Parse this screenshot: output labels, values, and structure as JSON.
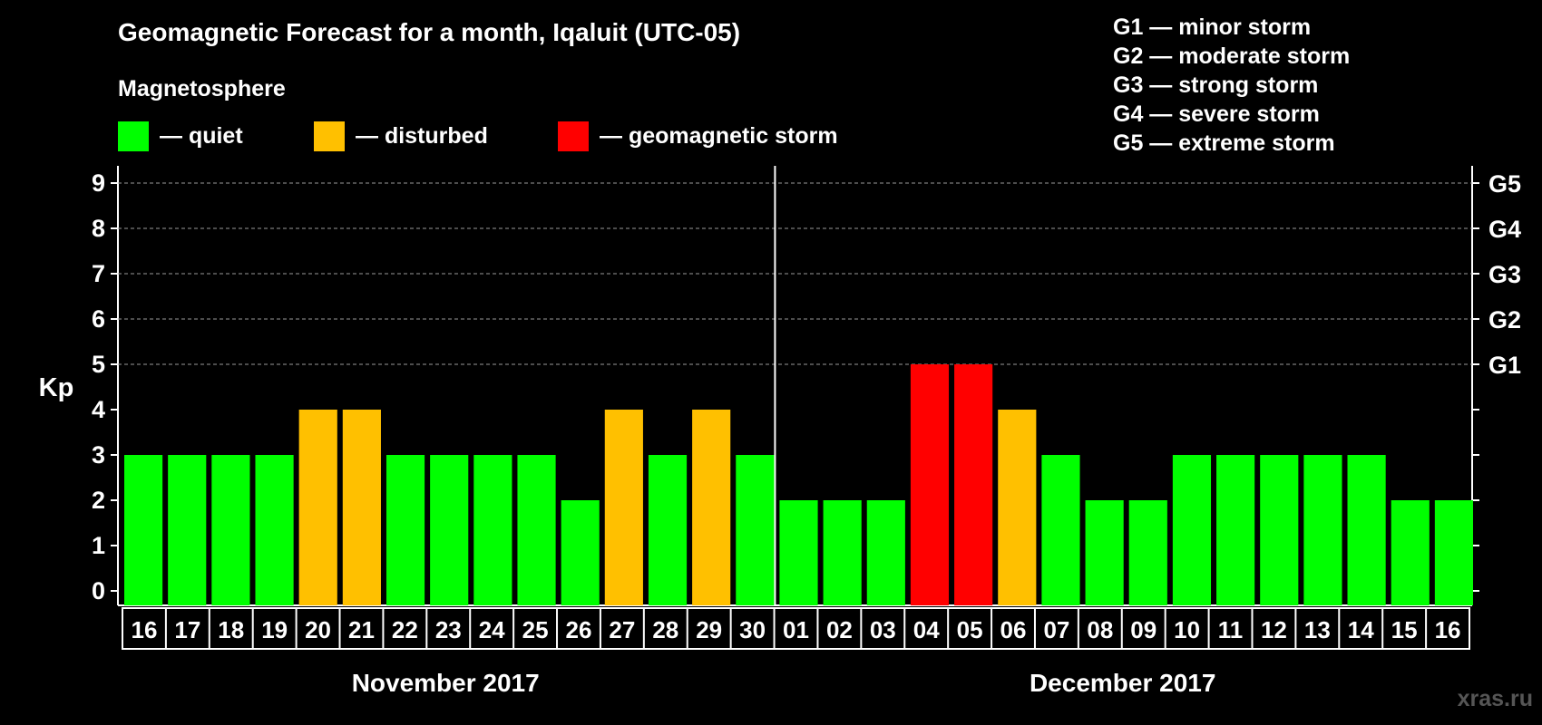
{
  "title": "Geomagnetic Forecast for a month, Iqaluit (UTC-05)",
  "subtitle": "Magnetosphere",
  "legend": [
    {
      "label": "— quiet",
      "color": "#00ff00"
    },
    {
      "label": "— disturbed",
      "color": "#ffc000"
    },
    {
      "label": "— geomagnetic storm",
      "color": "#ff0000"
    }
  ],
  "storm_scale": [
    "G1 — minor storm",
    "G2 — moderate storm",
    "G3 — strong storm",
    "G4 — severe storm",
    "G5 — extreme storm"
  ],
  "watermark": "xras.ru",
  "chart_data": {
    "type": "bar",
    "title": "Geomagnetic Forecast for a month, Iqaluit (UTC-05)",
    "ylabel": "Kp",
    "ylim": [
      0,
      9
    ],
    "yticks": [
      "0",
      "1",
      "2",
      "3",
      "4",
      "5",
      "6",
      "7",
      "8",
      "9"
    ],
    "right_axis": [
      {
        "kp": 5,
        "label": "G1"
      },
      {
        "kp": 6,
        "label": "G2"
      },
      {
        "kp": 7,
        "label": "G3"
      },
      {
        "kp": 8,
        "label": "G4"
      },
      {
        "kp": 9,
        "label": "G5"
      }
    ],
    "grid": "dashed horizontal at Kp 5-9",
    "categories": [
      "16",
      "17",
      "18",
      "19",
      "20",
      "21",
      "22",
      "23",
      "24",
      "25",
      "26",
      "27",
      "28",
      "29",
      "30",
      "01",
      "02",
      "03",
      "04",
      "05",
      "06",
      "07",
      "08",
      "09",
      "10",
      "11",
      "12",
      "13",
      "14",
      "15",
      "16"
    ],
    "values": [
      3,
      3,
      3,
      3,
      4,
      4,
      3,
      3,
      3,
      3,
      2,
      4,
      3,
      4,
      3,
      2,
      2,
      2,
      5,
      5,
      4,
      3,
      2,
      2,
      3,
      3,
      3,
      3,
      3,
      2,
      2
    ],
    "months": [
      {
        "label": "November 2017",
        "first_index": 0,
        "last_index": 14
      },
      {
        "label": "December 2017",
        "first_index": 15,
        "last_index": 30
      }
    ],
    "color_rule": {
      "quiet": "#00ff00",
      "disturbed": "#ffc000",
      "storm": "#ff0000",
      "disturbed_at": 4,
      "storm_at": 5
    }
  }
}
